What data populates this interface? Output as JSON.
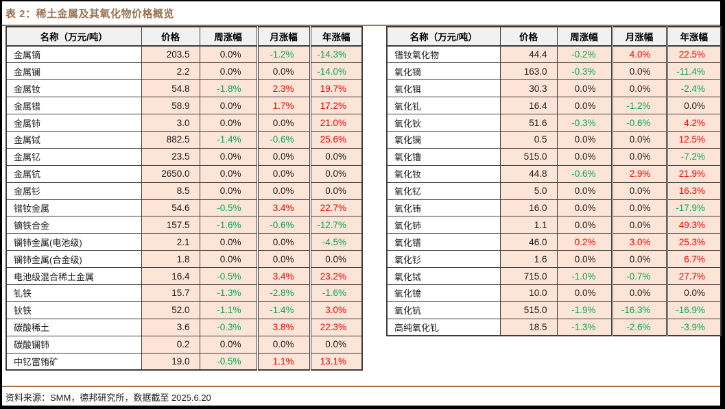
{
  "title": "表 2：稀土金属及其氧化物价格概览",
  "footer": "资料来源：SMM，德邦研究所，数据截至 2025.6.20",
  "columns": [
    "名称（万元/吨）",
    "价格",
    "周涨幅",
    "月涨幅",
    "年涨幅"
  ],
  "colors": {
    "accent": "#997250",
    "cell_bg": "#fce4d6",
    "header_bg": "#f1f1f1",
    "up": "#fe0000",
    "down": "#00a651",
    "flat": "#1a1a1a"
  },
  "left_table": {
    "rows": [
      [
        "金属镝",
        "203.5",
        "0.0%",
        "-1.2%",
        "-14.3%"
      ],
      [
        "金属镧",
        "2.2",
        "0.0%",
        "0.0%",
        "-14.0%"
      ],
      [
        "金属钕",
        "54.8",
        "-1.8%",
        "2.3%",
        "19.7%"
      ],
      [
        "金属镨",
        "58.9",
        "0.0%",
        "1.7%",
        "17.2%"
      ],
      [
        "金属铈",
        "3.0",
        "0.0%",
        "0.0%",
        "21.0%"
      ],
      [
        "金属铽",
        "882.5",
        "-1.4%",
        "-0.6%",
        "25.6%"
      ],
      [
        "金属钇",
        "23.5",
        "0.0%",
        "0.0%",
        "0.0%"
      ],
      [
        "金属钪",
        "2650.0",
        "0.0%",
        "0.0%",
        "0.0%"
      ],
      [
        "金属钐",
        "8.5",
        "0.0%",
        "0.0%",
        "0.0%"
      ],
      [
        "镨钕金属",
        "54.6",
        "-0.5%",
        "3.4%",
        "22.7%"
      ],
      [
        "镝铁合金",
        "157.5",
        "-1.6%",
        "-0.6%",
        "-12.7%"
      ],
      [
        "镧铈金属(电池级)",
        "2.1",
        "0.0%",
        "0.0%",
        "-4.5%"
      ],
      [
        "镧铈金属(合金级)",
        "1.8",
        "0.0%",
        "0.0%",
        "0.0%"
      ],
      [
        "电池级混合稀土金属",
        "16.4",
        "-0.5%",
        "3.4%",
        "23.2%"
      ],
      [
        "钆铁",
        "15.7",
        "-1.3%",
        "-2.8%",
        "-1.6%"
      ],
      [
        "钬铁",
        "52.0",
        "-1.1%",
        "-1.4%",
        "3.0%"
      ],
      [
        "碳酸稀土",
        "3.6",
        "-0.3%",
        "3.8%",
        "22.3%"
      ],
      [
        "碳酸镧铈",
        "0.2",
        "0.0%",
        "0.0%",
        "0.0%"
      ],
      [
        "中钇富铕矿",
        "19.0",
        "-0.5%",
        "1.1%",
        "13.1%"
      ]
    ]
  },
  "right_table": {
    "rows": [
      [
        "镨钕氧化物",
        "44.4",
        "-0.2%",
        "4.0%",
        "22.5%"
      ],
      [
        "氧化镝",
        "163.0",
        "-0.3%",
        "0.0%",
        "-11.4%"
      ],
      [
        "氧化铒",
        "30.3",
        "0.0%",
        "0.0%",
        "-2.4%"
      ],
      [
        "氧化钆",
        "16.4",
        "0.0%",
        "-1.2%",
        "0.0%"
      ],
      [
        "氧化钬",
        "51.6",
        "-0.3%",
        "-0.6%",
        "4.2%"
      ],
      [
        "氧化镧",
        "0.5",
        "0.0%",
        "0.0%",
        "12.5%"
      ],
      [
        "氧化镥",
        "515.0",
        "0.0%",
        "0.0%",
        "-7.2%"
      ],
      [
        "氧化钕",
        "44.8",
        "-0.6%",
        "2.9%",
        "21.9%"
      ],
      [
        "氧化钇",
        "5.0",
        "0.0%",
        "0.0%",
        "16.3%"
      ],
      [
        "氧化铕",
        "16.0",
        "0.0%",
        "0.0%",
        "-17.9%"
      ],
      [
        "氧化铈",
        "1.1",
        "0.0%",
        "0.0%",
        "49.3%"
      ],
      [
        "氧化镨",
        "46.0",
        "0.2%",
        "3.0%",
        "25.3%"
      ],
      [
        "氧化钐",
        "1.6",
        "0.0%",
        "0.0%",
        "6.7%"
      ],
      [
        "氧化铽",
        "715.0",
        "-1.0%",
        "-0.7%",
        "27.7%"
      ],
      [
        "氧化镱",
        "10.0",
        "0.0%",
        "0.0%",
        "0.0%"
      ],
      [
        "氧化钪",
        "515.0",
        "-1.9%",
        "-16.3%",
        "-16.9%"
      ],
      [
        "高纯氧化钆",
        "18.5",
        "-1.3%",
        "-2.6%",
        "-3.9%"
      ]
    ]
  }
}
